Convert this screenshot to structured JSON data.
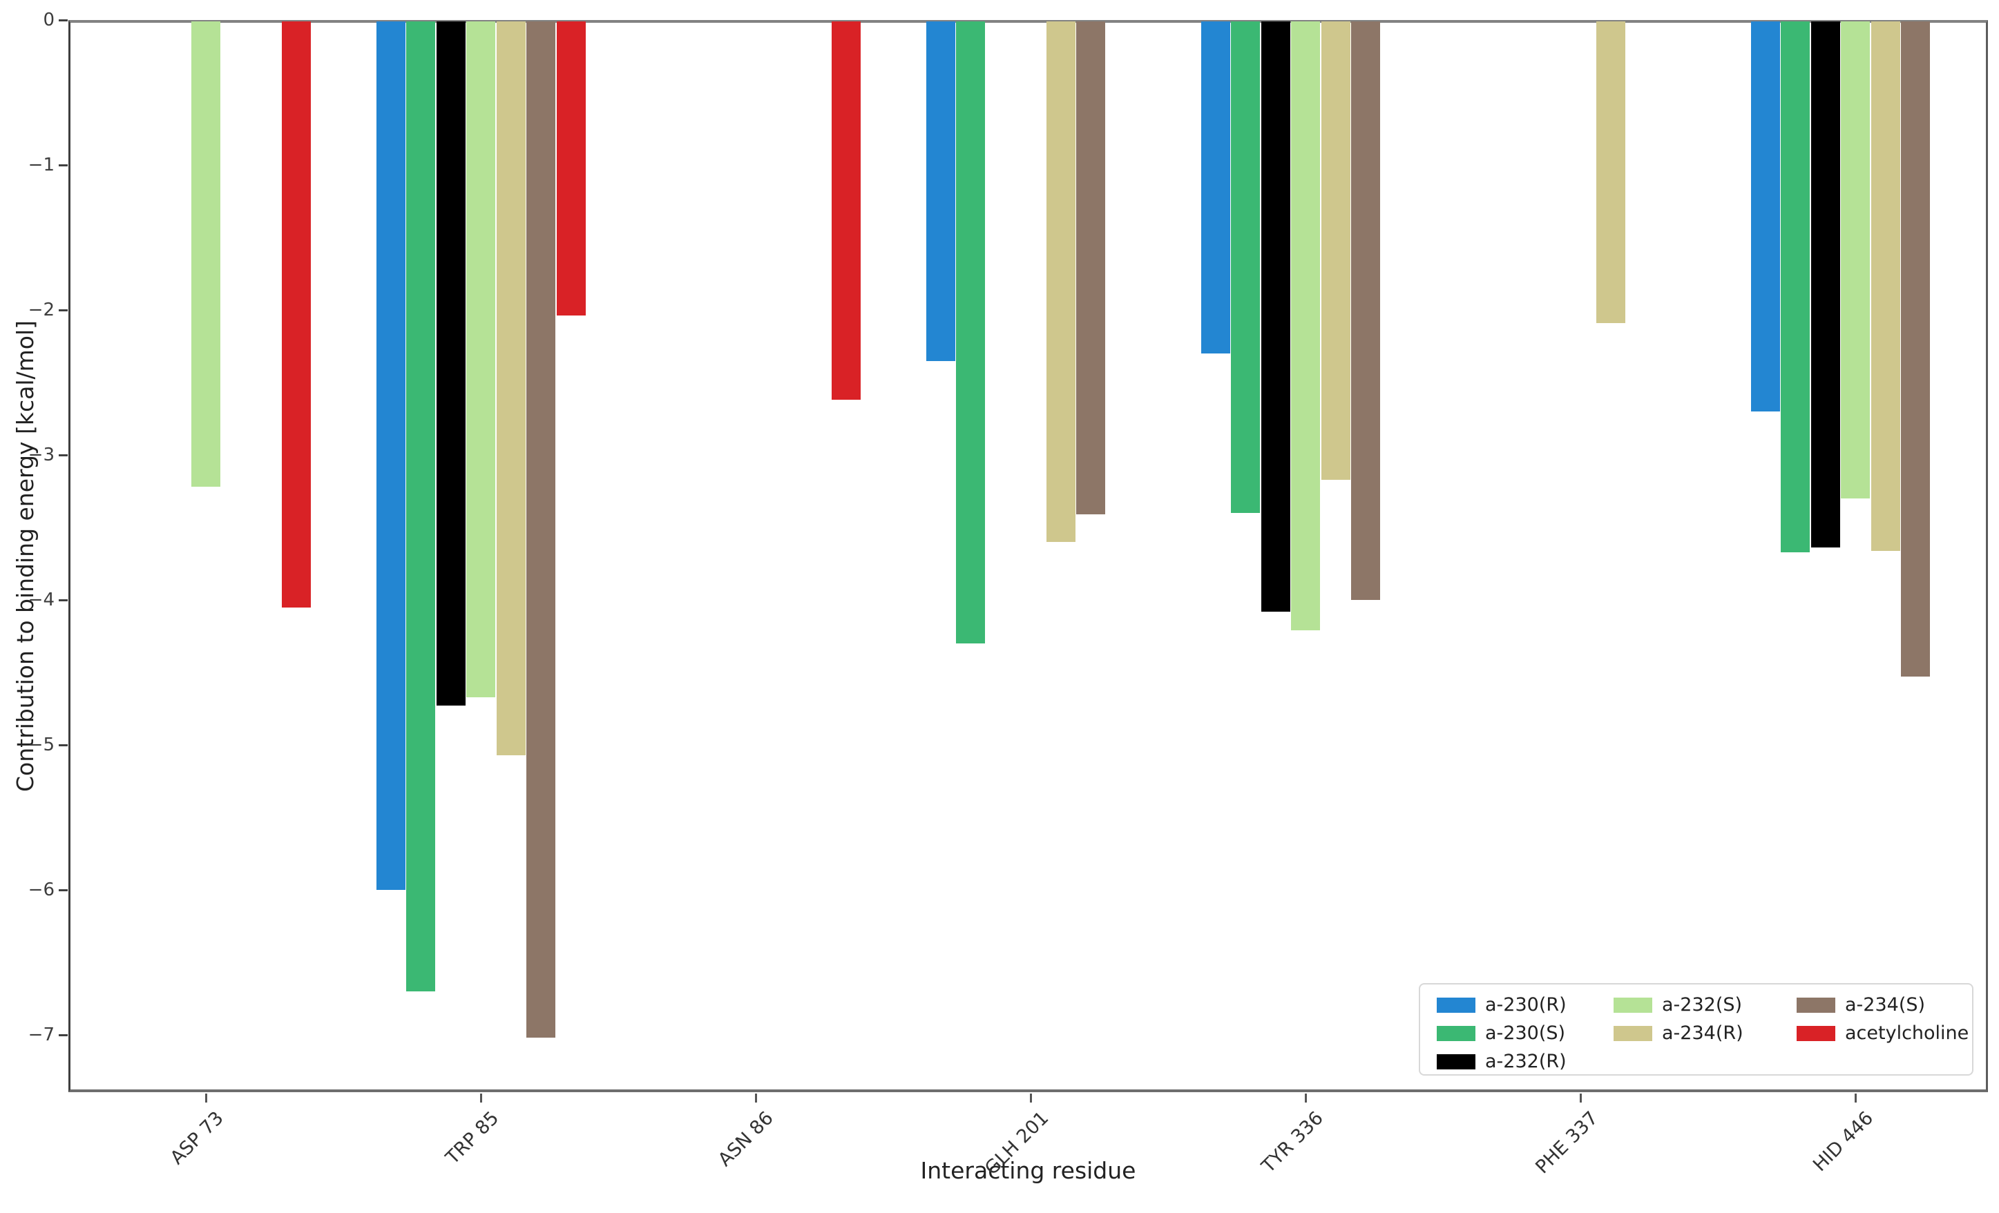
{
  "chart_data": {
    "type": "bar",
    "title": "",
    "xlabel": "Interacting residue",
    "ylabel": "Contribution to binding energy [kcal/mol]",
    "categories": [
      "ASP 73",
      "TRP 85",
      "ASN 86",
      "GLH 201",
      "TYR 336",
      "PHE 337",
      "HID 446"
    ],
    "series": [
      {
        "name": "a-230(R)",
        "color": "#2386d2",
        "values": [
          0,
          -6.0,
          0,
          -2.35,
          -2.3,
          0,
          -2.7
        ]
      },
      {
        "name": "a-230(S)",
        "color": "#3bb873",
        "values": [
          0,
          -6.7,
          0,
          -4.3,
          -3.4,
          0,
          -3.67
        ]
      },
      {
        "name": "a-232(R)",
        "color": "#000000",
        "values": [
          0,
          -4.73,
          0,
          0,
          -4.08,
          0,
          -3.64
        ]
      },
      {
        "name": "a-232(S)",
        "color": "#b5e296",
        "values": [
          -3.22,
          -4.67,
          0,
          0,
          -4.21,
          0,
          -3.3
        ]
      },
      {
        "name": "a-234(R)",
        "color": "#cfc78d",
        "values": [
          0,
          -5.07,
          0,
          -3.6,
          -3.17,
          -2.09,
          -3.66
        ]
      },
      {
        "name": "a-234(S)",
        "color": "#8d7667",
        "values": [
          0,
          -7.02,
          0,
          -3.41,
          -4.0,
          0,
          -4.53
        ]
      },
      {
        "name": "acetylcholine",
        "color": "#d92226",
        "values": [
          -4.05,
          -2.04,
          -2.62,
          0,
          0,
          0,
          0
        ]
      }
    ],
    "yticks": [
      0,
      -1,
      -2,
      -3,
      -4,
      -5,
      -6,
      -7
    ],
    "ylim": [
      -7.4,
      0
    ],
    "grid": false,
    "bar_rule": "bars with value 0 are not drawn",
    "legend_position": "lower right",
    "legend_columns": [
      [
        0,
        1,
        2
      ],
      [
        3,
        4
      ],
      [
        5,
        6
      ]
    ]
  }
}
